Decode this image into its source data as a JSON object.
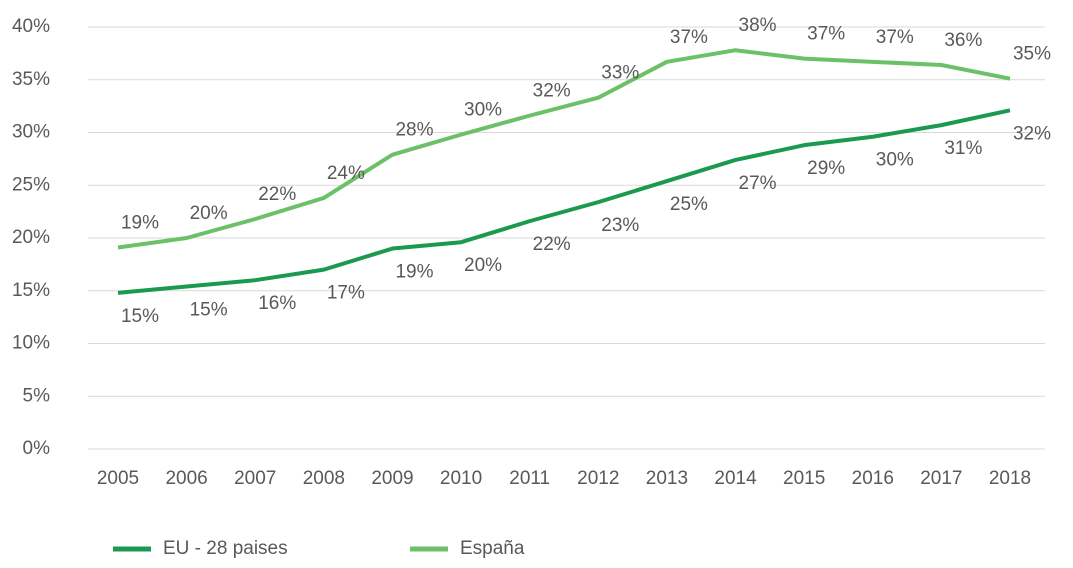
{
  "chart_data": {
    "type": "line",
    "categories": [
      "2005",
      "2006",
      "2007",
      "2008",
      "2009",
      "2010",
      "2011",
      "2012",
      "2013",
      "2014",
      "2015",
      "2016",
      "2017",
      "2018"
    ],
    "series": [
      {
        "name": "EU - 28 paises",
        "color": "#1b9a4f",
        "values": [
          14.8,
          15.4,
          16.0,
          17.0,
          19.0,
          19.6,
          21.6,
          23.4,
          25.4,
          27.4,
          28.8,
          29.6,
          30.7,
          32.1
        ],
        "value_labels": [
          "15%",
          "15%",
          "16%",
          "17%",
          "19%",
          "20%",
          "22%",
          "23%",
          "25%",
          "27%",
          "29%",
          "30%",
          "31%",
          "32%"
        ]
      },
      {
        "name": "España",
        "color": "#6cc067",
        "values": [
          19.1,
          20.0,
          21.8,
          23.8,
          27.9,
          29.8,
          31.6,
          33.3,
          36.7,
          37.8,
          37.0,
          36.7,
          36.4,
          35.1
        ],
        "value_labels": [
          "19%",
          "20%",
          "22%",
          "24%",
          "28%",
          "30%",
          "32%",
          "33%",
          "37%",
          "38%",
          "37%",
          "37%",
          "36%",
          "35%"
        ]
      }
    ],
    "ylim": [
      0,
      40
    ],
    "yticks": [
      {
        "value": 0,
        "label": "0%"
      },
      {
        "value": 5,
        "label": "5%"
      },
      {
        "value": 10,
        "label": "10%"
      },
      {
        "value": 15,
        "label": "15%"
      },
      {
        "value": 20,
        "label": "20%"
      },
      {
        "value": 25,
        "label": "25%"
      },
      {
        "value": 30,
        "label": "30%"
      },
      {
        "value": 35,
        "label": "35%"
      },
      {
        "value": 40,
        "label": "40%"
      }
    ],
    "grid": true,
    "legend": "bottom"
  }
}
